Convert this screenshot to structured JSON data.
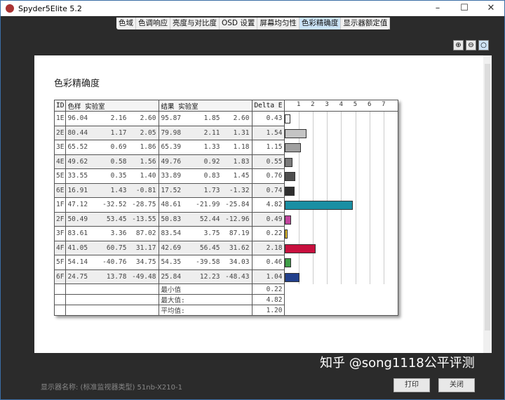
{
  "window": {
    "title": "Spyder5Elite 5.2",
    "minimize": "–",
    "maximize": "☐",
    "close": "✕"
  },
  "tabs": [
    {
      "label": "色域"
    },
    {
      "label": "色调响应"
    },
    {
      "label": "亮度与对比度"
    },
    {
      "label": "OSD 设置"
    },
    {
      "label": "屏幕均匀性"
    },
    {
      "label": "色彩精确度",
      "active": true
    },
    {
      "label": "显示器额定值"
    }
  ],
  "zoom_icons": [
    "zoom-in-icon",
    "zoom-out-icon",
    "zoom-fit-icon"
  ],
  "report": {
    "title": "色彩精确度",
    "headers": {
      "id": "ID",
      "sample": "色样 实验室",
      "result": "结果 实验室",
      "delta": "Delta E"
    },
    "scale_ticks": [
      "1",
      "2",
      "3",
      "4",
      "5",
      "6",
      "7"
    ],
    "rows": [
      {
        "id": "1E",
        "s": [
          "96.04",
          "2.16",
          "2.60"
        ],
        "r": [
          "95.87",
          "1.85",
          "2.60"
        ],
        "de": "0.43",
        "color": "#f4f4f4"
      },
      {
        "id": "2E",
        "s": [
          "80.44",
          "1.17",
          "2.05"
        ],
        "r": [
          "79.98",
          "2.11",
          "1.31"
        ],
        "de": "1.54",
        "color": "#c4c4c4"
      },
      {
        "id": "3E",
        "s": [
          "65.52",
          "0.69",
          "1.86"
        ],
        "r": [
          "65.39",
          "1.33",
          "1.18"
        ],
        "de": "1.15",
        "color": "#a0a0a0"
      },
      {
        "id": "4E",
        "s": [
          "49.62",
          "0.58",
          "1.56"
        ],
        "r": [
          "49.76",
          "0.92",
          "1.83"
        ],
        "de": "0.55",
        "color": "#7a7a7a"
      },
      {
        "id": "5E",
        "s": [
          "33.55",
          "0.35",
          "1.40"
        ],
        "r": [
          "33.89",
          "0.83",
          "1.45"
        ],
        "de": "0.76",
        "color": "#4e4e4e"
      },
      {
        "id": "6E",
        "s": [
          "16.91",
          "1.43",
          "-0.81"
        ],
        "r": [
          "17.52",
          "1.73",
          "-1.32"
        ],
        "de": "0.74",
        "color": "#2e2e2e"
      },
      {
        "id": "1F",
        "s": [
          "47.12",
          "-32.52",
          "-28.75"
        ],
        "r": [
          "48.61",
          "-21.99",
          "-25.84"
        ],
        "de": "4.82",
        "color": "#1a8fa3"
      },
      {
        "id": "2F",
        "s": [
          "50.49",
          "53.45",
          "-13.55"
        ],
        "r": [
          "50.83",
          "52.44",
          "-12.96"
        ],
        "de": "0.49",
        "color": "#c2449e"
      },
      {
        "id": "3F",
        "s": [
          "83.61",
          "3.36",
          "87.02"
        ],
        "r": [
          "83.54",
          "3.75",
          "87.19"
        ],
        "de": "0.22",
        "color": "#e6c02a"
      },
      {
        "id": "4F",
        "s": [
          "41.05",
          "60.75",
          "31.17"
        ],
        "r": [
          "42.69",
          "56.45",
          "31.62"
        ],
        "de": "2.18",
        "color": "#c8103e"
      },
      {
        "id": "5F",
        "s": [
          "54.14",
          "-40.76",
          "34.75"
        ],
        "r": [
          "54.35",
          "-39.58",
          "34.03"
        ],
        "de": "0.46",
        "color": "#3f9e48"
      },
      {
        "id": "6F",
        "s": [
          "24.75",
          "13.78",
          "-49.48"
        ],
        "r": [
          "25.84",
          "12.23",
          "-48.43"
        ],
        "de": "1.04",
        "color": "#22408c"
      }
    ],
    "summary": [
      {
        "label": "最小值",
        "value": "0.22"
      },
      {
        "label": "最大值:",
        "value": "4.82"
      },
      {
        "label": "平均值:",
        "value": "1.20"
      }
    ]
  },
  "footer": {
    "display_name": "显示器名称: (标准监视器类型) 51nb-X210-1",
    "print": "打印",
    "close": "关闭",
    "watermark": "知乎 @song1118公平评测"
  }
}
